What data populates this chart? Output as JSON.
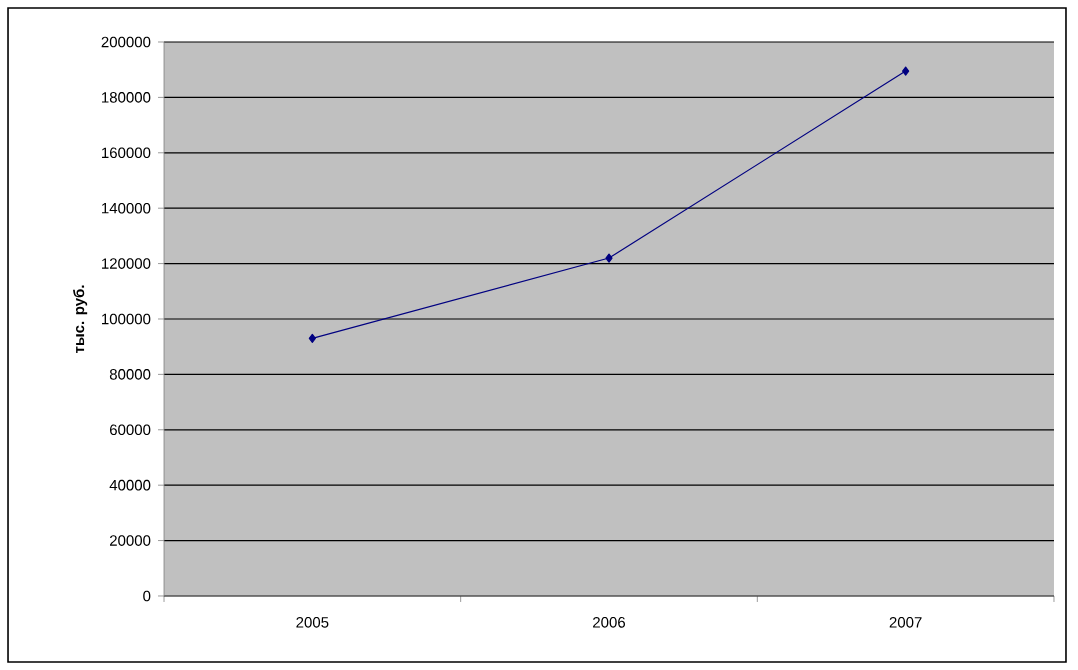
{
  "chart_data": {
    "type": "line",
    "ylabel": "тыс. руб.",
    "categories": [
      "2005",
      "2006",
      "2007"
    ],
    "series": [
      {
        "color": "#000080",
        "values": [
          93000,
          122000,
          189500
        ]
      }
    ],
    "ylim": [
      0,
      200000
    ],
    "yticks": [
      0,
      20000,
      40000,
      60000,
      80000,
      100000,
      120000,
      140000,
      160000,
      180000,
      200000
    ],
    "grid": "y",
    "marker": "diamond",
    "line_style": "solid"
  }
}
